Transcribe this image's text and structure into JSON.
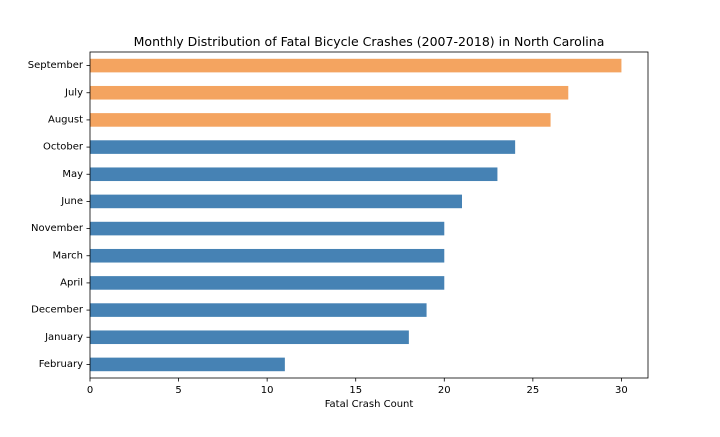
{
  "chart_data": {
    "type": "bar",
    "orientation": "horizontal",
    "title": "Monthly Distribution of Fatal Bicycle Crashes (2007-2018) in North Carolina",
    "xlabel": "Fatal Crash Count",
    "ylabel": "",
    "xlim": [
      0,
      31.5
    ],
    "xticks": [
      0,
      5,
      10,
      15,
      20,
      25,
      30
    ],
    "grid": false,
    "legend": "none",
    "categories": [
      "September",
      "July",
      "August",
      "October",
      "May",
      "June",
      "November",
      "March",
      "April",
      "December",
      "January",
      "February"
    ],
    "values": [
      30,
      27,
      26,
      24,
      23,
      21,
      20,
      20,
      20,
      19,
      18,
      11
    ],
    "bar_colors": [
      "#f4a460",
      "#f4a460",
      "#f4a460",
      "#4682b4",
      "#4682b4",
      "#4682b4",
      "#4682b4",
      "#4682b4",
      "#4682b4",
      "#4682b4",
      "#4682b4",
      "#4682b4"
    ],
    "highlight_color": "#f4a460",
    "base_color": "#4682b4"
  }
}
